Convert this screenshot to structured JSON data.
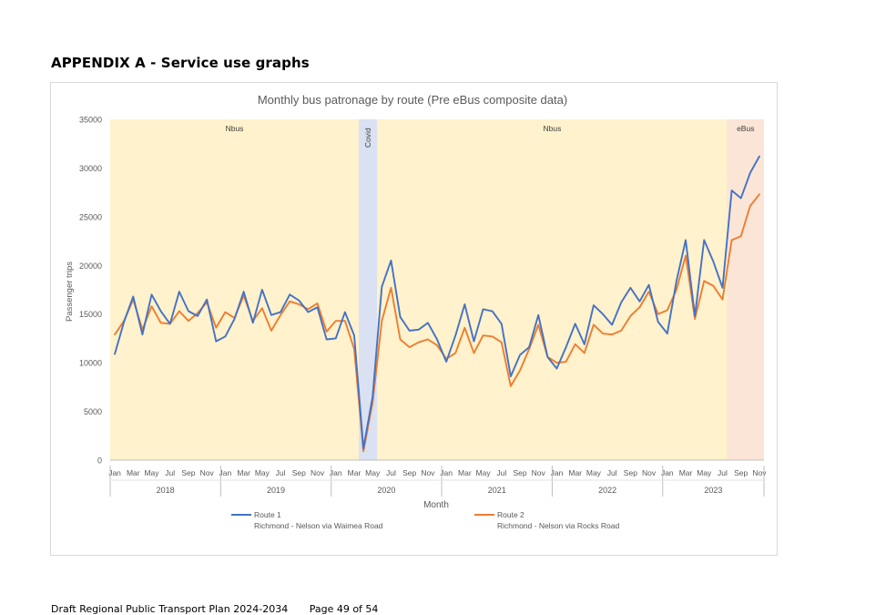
{
  "document": {
    "heading": "APPENDIX A - Service use graphs",
    "footer_title": "Draft Regional Public Transport Plan 2024-2034",
    "footer_page": "Page 49 of 54"
  },
  "chart_data": {
    "type": "line",
    "title": "Monthly bus patronage by route (Pre eBus composite data)",
    "xlabel": "Month",
    "ylabel": "Passenger trips",
    "ylim": [
      0,
      35000
    ],
    "yticks": [
      0,
      5000,
      10000,
      15000,
      20000,
      25000,
      30000,
      35000
    ],
    "grid": false,
    "legend_position": "bottom",
    "month_tick_labels": [
      "Jan",
      "Mar",
      "May",
      "Jul",
      "Sep",
      "Nov"
    ],
    "years": [
      "2018",
      "2019",
      "2020",
      "2021",
      "2022",
      "2023"
    ],
    "x": [
      "2018-01",
      "2018-02",
      "2018-03",
      "2018-04",
      "2018-05",
      "2018-06",
      "2018-07",
      "2018-08",
      "2018-09",
      "2018-10",
      "2018-11",
      "2018-12",
      "2019-01",
      "2019-02",
      "2019-03",
      "2019-04",
      "2019-05",
      "2019-06",
      "2019-07",
      "2019-08",
      "2019-09",
      "2019-10",
      "2019-11",
      "2019-12",
      "2020-01",
      "2020-02",
      "2020-03",
      "2020-04",
      "2020-05",
      "2020-06",
      "2020-07",
      "2020-08",
      "2020-09",
      "2020-10",
      "2020-11",
      "2020-12",
      "2021-01",
      "2021-02",
      "2021-03",
      "2021-04",
      "2021-05",
      "2021-06",
      "2021-07",
      "2021-08",
      "2021-09",
      "2021-10",
      "2021-11",
      "2021-12",
      "2022-01",
      "2022-02",
      "2022-03",
      "2022-04",
      "2022-05",
      "2022-06",
      "2022-07",
      "2022-08",
      "2022-09",
      "2022-10",
      "2022-11",
      "2022-12",
      "2023-01",
      "2023-02",
      "2023-03",
      "2023-04",
      "2023-05",
      "2023-06",
      "2023-07",
      "2023-08",
      "2023-09",
      "2023-10",
      "2023-11"
    ],
    "series": [
      {
        "name": "Route 1",
        "description": "Richmond - Nelson via Waimea Road",
        "color": "#4472c4",
        "values": [
          10900,
          14200,
          16800,
          12900,
          17000,
          15300,
          14000,
          17300,
          15300,
          14800,
          16500,
          12200,
          12700,
          14500,
          17300,
          14100,
          17500,
          14900,
          15200,
          17000,
          16400,
          15200,
          15700,
          12400,
          12500,
          15200,
          12800,
          1200,
          6500,
          17800,
          20500,
          14700,
          13300,
          13400,
          14100,
          12400,
          10100,
          12800,
          16000,
          12200,
          15500,
          15300,
          14000,
          8600,
          10800,
          11600,
          14900,
          10600,
          9400,
          11600,
          14000,
          11900,
          15900,
          15000,
          13900,
          16200,
          17700,
          16300,
          18000,
          14200,
          13000,
          18400,
          22600,
          14800,
          22600,
          20400,
          17700,
          27700,
          26900,
          29500,
          31200
        ]
      },
      {
        "name": "Route 2",
        "description": "Richmond - Nelson via Rocks Road",
        "color": "#ed7d31",
        "values": [
          12900,
          14300,
          16500,
          13400,
          15800,
          14100,
          14000,
          15300,
          14300,
          15100,
          16200,
          13600,
          15200,
          14600,
          16900,
          14300,
          15600,
          13300,
          14900,
          16300,
          16000,
          15500,
          16100,
          13200,
          14300,
          14300,
          11400,
          900,
          5900,
          14300,
          17700,
          12400,
          11600,
          12100,
          12400,
          11800,
          10400,
          11000,
          13600,
          11000,
          12800,
          12700,
          12100,
          7600,
          9200,
          11400,
          13900,
          10600,
          10000,
          10100,
          11900,
          11000,
          13900,
          13000,
          12900,
          13300,
          14800,
          15700,
          17300,
          15000,
          15400,
          17500,
          21000,
          14500,
          18400,
          17900,
          16500,
          22600,
          23000,
          26100,
          27300
        ]
      }
    ],
    "periods": [
      {
        "label": "Nbus",
        "start": "2018-01",
        "end": "2020-03",
        "color": "#fff2cc"
      },
      {
        "label": "Covid",
        "start": "2020-04",
        "end": "2020-05",
        "color": "#d9e1f2"
      },
      {
        "label": "Nbus",
        "start": "2020-06",
        "end": "2023-07",
        "color": "#fff2cc"
      },
      {
        "label": "eBus",
        "start": "2023-08",
        "end": "2023-11",
        "color": "#fbe5d6"
      }
    ]
  }
}
